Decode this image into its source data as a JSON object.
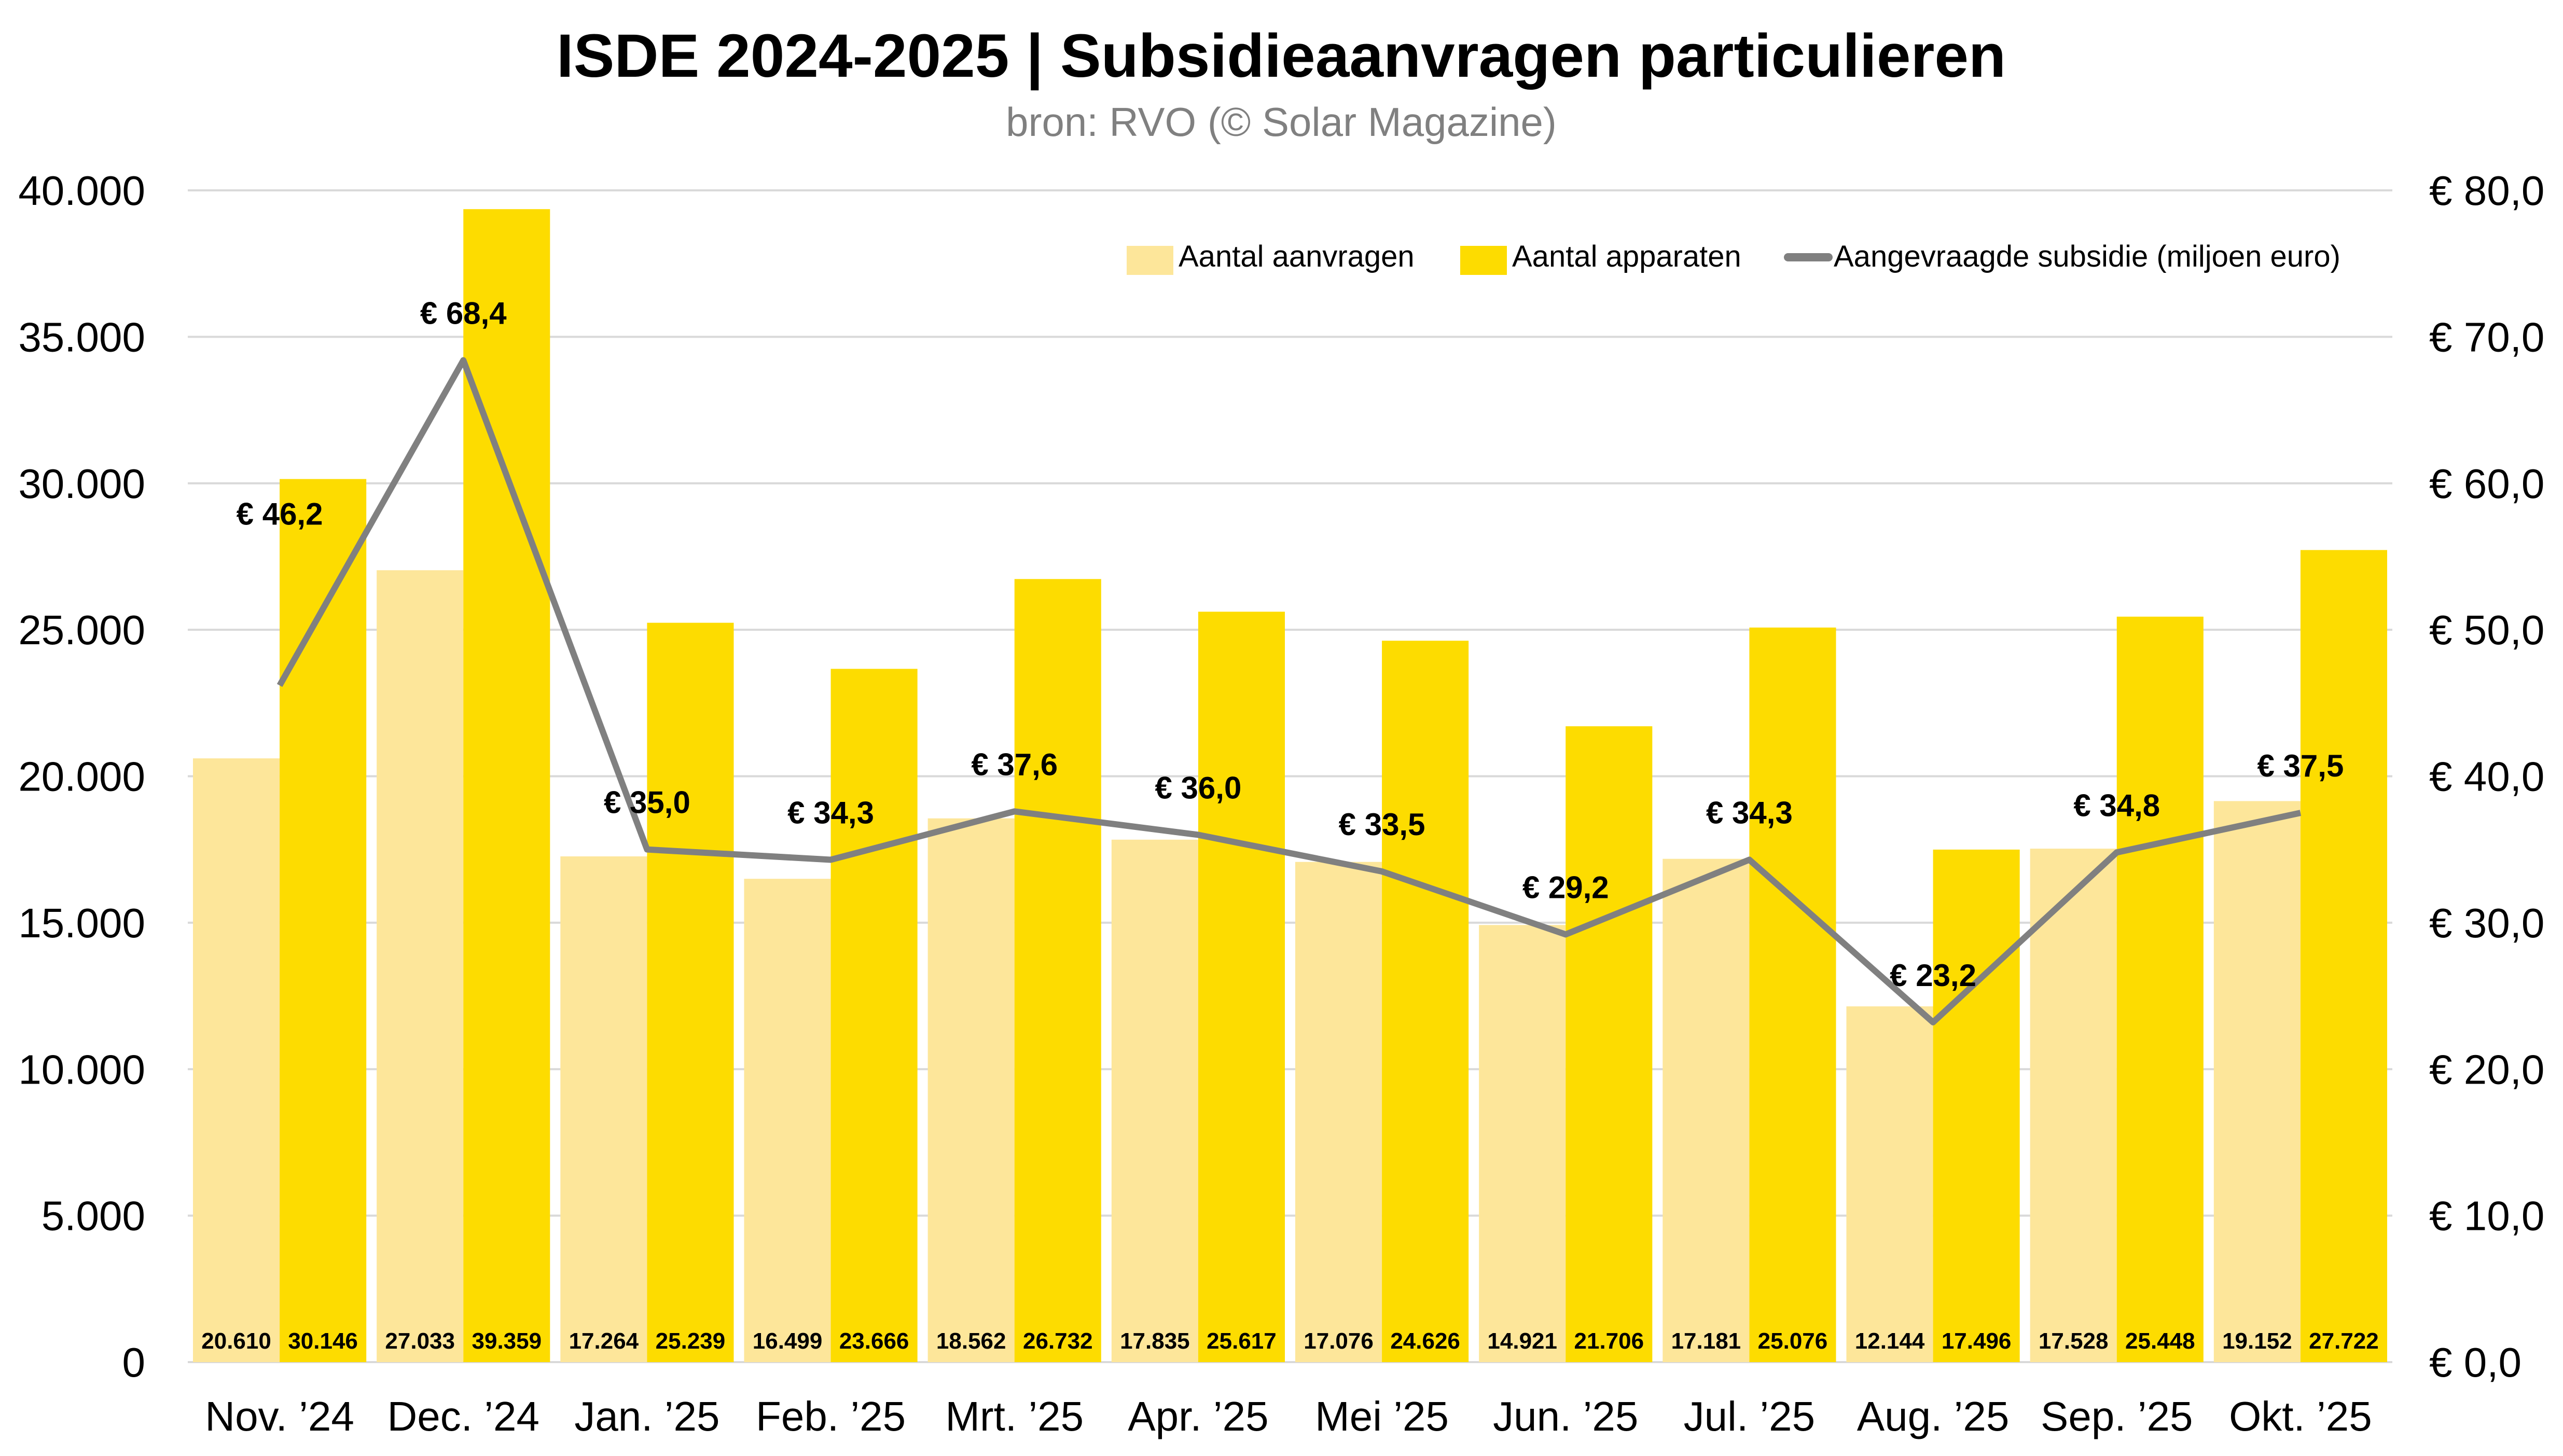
{
  "chart_data": {
    "type": "bar",
    "title": "ISDE 2024-2025 | Subsidieaanvragen particulieren",
    "subtitle": "bron: RVO (© Solar Magazine)",
    "categories": [
      "Nov. ’24",
      "Dec. ’24",
      "Jan. ’25",
      "Feb. ’25",
      "Mrt. ’25",
      "Apr. ’25",
      "Mei ’25",
      "Jun. ’25",
      "Jul. ’25",
      "Aug. ’25",
      "Sep. ’25",
      "Okt. ’25"
    ],
    "series": [
      {
        "name": "Aantal aanvragen",
        "type": "bar",
        "axis": "left",
        "color": "#FDE69A",
        "values": [
          20610,
          27033,
          17264,
          16499,
          18562,
          17835,
          17076,
          14921,
          17181,
          12144,
          17528,
          19152
        ],
        "labels": [
          "20.610",
          "27.033",
          "17.264",
          "16.499",
          "18.562",
          "17.835",
          "17.076",
          "14.921",
          "17.181",
          "12.144",
          "17.528",
          "19.152"
        ]
      },
      {
        "name": "Aantal apparaten",
        "type": "bar",
        "axis": "left",
        "color": "#FDDC00",
        "values": [
          30146,
          39359,
          25239,
          23666,
          26732,
          25617,
          24626,
          21706,
          25076,
          17496,
          25448,
          27722
        ],
        "labels": [
          "30.146",
          "39.359",
          "25.239",
          "23.666",
          "26.732",
          "25.617",
          "24.626",
          "21.706",
          "25.076",
          "17.496",
          "25.448",
          "27.722"
        ]
      },
      {
        "name": "Aangevraagde subsidie (miljoen euro)",
        "type": "line",
        "axis": "right",
        "color": "#808080",
        "values": [
          46.2,
          68.4,
          35.0,
          34.3,
          37.6,
          36.0,
          33.5,
          29.2,
          34.3,
          23.2,
          34.8,
          37.5
        ],
        "labels": [
          "€ 46,2",
          "€ 68,4",
          "€ 35,0",
          "€ 34,3",
          "€ 37,6",
          "€ 36,0",
          "€ 33,5",
          "€ 29,2",
          "€ 34,3",
          "€ 23,2",
          "€ 34,8",
          "€ 37,5"
        ]
      }
    ],
    "y_left": {
      "ylim": [
        0,
        40000
      ],
      "ticks": [
        0,
        5000,
        10000,
        15000,
        20000,
        25000,
        30000,
        35000,
        40000
      ],
      "tick_labels": [
        "0",
        "5.000",
        "10.000",
        "15.000",
        "20.000",
        "25.000",
        "30.000",
        "35.000",
        "40.000"
      ]
    },
    "y_right": {
      "ylim": [
        0,
        80
      ],
      "ticks": [
        0,
        10,
        20,
        30,
        40,
        50,
        60,
        70,
        80
      ],
      "tick_labels": [
        "€ 0,0",
        "€ 10,0",
        "€ 20,0",
        "€ 30,0",
        "€ 40,0",
        "€ 50,0",
        "€ 60,0",
        "€ 70,0",
        "€ 80,0"
      ]
    },
    "xlabel": "",
    "ylabel": "",
    "grid": true,
    "legend_position": "top-right"
  }
}
